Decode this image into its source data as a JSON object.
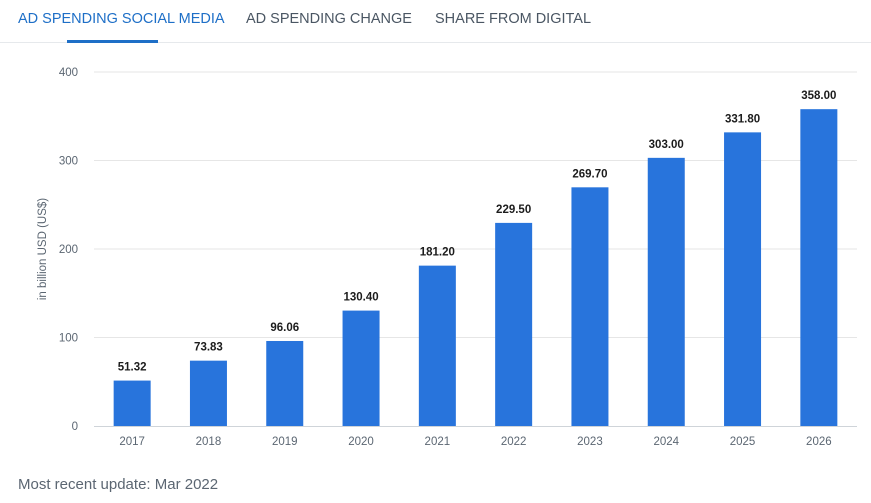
{
  "tabs": [
    {
      "label": "AD SPENDING SOCIAL MEDIA",
      "active": true
    },
    {
      "label": "AD SPENDING CHANGE",
      "active": false
    },
    {
      "label": "SHARE FROM DIGITAL",
      "active": false
    }
  ],
  "footer": {
    "text": "Most recent update: Mar 2022"
  },
  "colors": {
    "bar": "#2874dc",
    "accent": "#1e6fc7",
    "grid": "#e6e6e6"
  },
  "chart_data": {
    "type": "bar",
    "categories": [
      "2017",
      "2018",
      "2019",
      "2020",
      "2021",
      "2022",
      "2023",
      "2024",
      "2025",
      "2026"
    ],
    "values": [
      51.32,
      73.83,
      96.06,
      130.4,
      181.2,
      229.5,
      269.7,
      303.0,
      331.8,
      358.0
    ],
    "data_labels": [
      "51.32",
      "73.83",
      "96.06",
      "130.40",
      "181.20",
      "229.50",
      "269.70",
      "303.00",
      "331.80",
      "358.00"
    ],
    "ylabel": "in billion USD (US$)",
    "ylim": [
      0,
      400
    ],
    "yticks": [
      0,
      100,
      200,
      300,
      400
    ],
    "grid": true
  }
}
